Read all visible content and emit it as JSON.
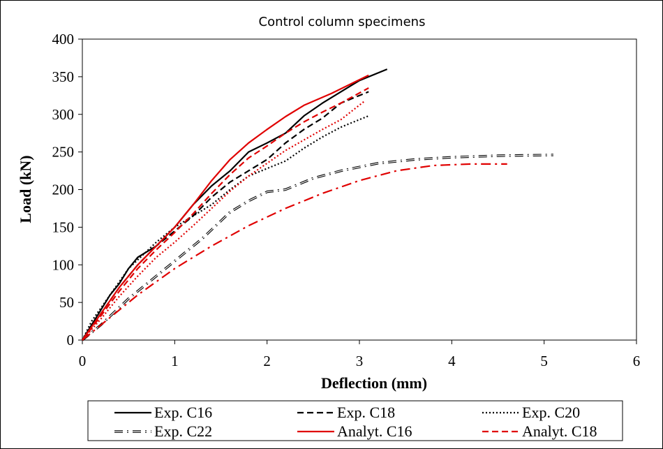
{
  "chart_data": {
    "type": "line",
    "title": "Control column specimens",
    "xlabel": "Deflection  (mm)",
    "ylabel": "Load (kN)",
    "xlim": [
      0,
      6
    ],
    "ylim": [
      0,
      400
    ],
    "xticks": [
      "0",
      "1",
      "2",
      "3",
      "4",
      "5",
      "6"
    ],
    "yticks": [
      "0",
      "50",
      "100",
      "150",
      "200",
      "250",
      "300",
      "350",
      "400"
    ],
    "grid": false,
    "legend_position": "bottom",
    "series": [
      {
        "name": "Exp. C16",
        "color": "#000000",
        "style": "solid",
        "points": [
          [
            0,
            0
          ],
          [
            0.1,
            20
          ],
          [
            0.2,
            40
          ],
          [
            0.3,
            60
          ],
          [
            0.4,
            75
          ],
          [
            0.5,
            95
          ],
          [
            0.6,
            110
          ],
          [
            0.8,
            125
          ],
          [
            1.0,
            150
          ],
          [
            1.2,
            180
          ],
          [
            1.4,
            205
          ],
          [
            1.6,
            225
          ],
          [
            1.8,
            250
          ],
          [
            2.0,
            262
          ],
          [
            2.2,
            275
          ],
          [
            2.4,
            298
          ],
          [
            2.6,
            315
          ],
          [
            2.8,
            330
          ],
          [
            3.0,
            345
          ],
          [
            3.3,
            360
          ]
        ]
      },
      {
        "name": "Exp. C18",
        "color": "#000000",
        "style": "dashed",
        "points": [
          [
            0,
            0
          ],
          [
            0.2,
            35
          ],
          [
            0.4,
            70
          ],
          [
            0.6,
            100
          ],
          [
            0.8,
            125
          ],
          [
            1.0,
            145
          ],
          [
            1.2,
            165
          ],
          [
            1.4,
            190
          ],
          [
            1.6,
            210
          ],
          [
            1.8,
            225
          ],
          [
            2.0,
            240
          ],
          [
            2.2,
            262
          ],
          [
            2.4,
            280
          ],
          [
            2.6,
            295
          ],
          [
            2.8,
            315
          ],
          [
            3.1,
            330
          ]
        ]
      },
      {
        "name": "Exp. C20",
        "color": "#000000",
        "style": "dotted",
        "points": [
          [
            0,
            0
          ],
          [
            0.1,
            25
          ],
          [
            0.3,
            60
          ],
          [
            0.5,
            95
          ],
          [
            0.8,
            130
          ],
          [
            1.0,
            150
          ],
          [
            1.2,
            165
          ],
          [
            1.4,
            180
          ],
          [
            1.6,
            200
          ],
          [
            1.8,
            218
          ],
          [
            2.0,
            228
          ],
          [
            2.2,
            238
          ],
          [
            2.4,
            255
          ],
          [
            2.6,
            270
          ],
          [
            2.8,
            283
          ],
          [
            3.1,
            298
          ]
        ]
      },
      {
        "name": "Exp. C22",
        "color": "#000000",
        "style": "double-dash-dot",
        "points": [
          [
            0,
            0
          ],
          [
            0.2,
            20
          ],
          [
            0.5,
            55
          ],
          [
            0.8,
            85
          ],
          [
            1.0,
            105
          ],
          [
            1.3,
            135
          ],
          [
            1.6,
            170
          ],
          [
            1.8,
            185
          ],
          [
            2.0,
            197
          ],
          [
            2.2,
            200
          ],
          [
            2.5,
            215
          ],
          [
            2.8,
            225
          ],
          [
            3.2,
            235
          ],
          [
            3.6,
            240
          ],
          [
            4.0,
            243
          ],
          [
            4.5,
            245
          ],
          [
            5.1,
            246
          ]
        ]
      },
      {
        "name": "Analyt. C16",
        "color": "#e00000",
        "style": "solid",
        "points": [
          [
            0,
            0
          ],
          [
            0.2,
            35
          ],
          [
            0.4,
            70
          ],
          [
            0.6,
            100
          ],
          [
            0.8,
            125
          ],
          [
            1.0,
            150
          ],
          [
            1.2,
            180
          ],
          [
            1.4,
            212
          ],
          [
            1.6,
            240
          ],
          [
            1.8,
            262
          ],
          [
            2.0,
            280
          ],
          [
            2.2,
            297
          ],
          [
            2.4,
            312
          ],
          [
            2.7,
            328
          ],
          [
            3.1,
            352
          ]
        ]
      },
      {
        "name": "Analyt. C18",
        "color": "#e00000",
        "style": "dashed",
        "points": [
          [
            0,
            0
          ],
          [
            0.2,
            32
          ],
          [
            0.4,
            65
          ],
          [
            0.6,
            95
          ],
          [
            0.8,
            120
          ],
          [
            1.0,
            143
          ],
          [
            1.2,
            168
          ],
          [
            1.4,
            195
          ],
          [
            1.6,
            220
          ],
          [
            1.8,
            242
          ],
          [
            2.0,
            258
          ],
          [
            2.2,
            275
          ],
          [
            2.4,
            290
          ],
          [
            2.6,
            303
          ],
          [
            2.8,
            315
          ],
          [
            3.1,
            335
          ]
        ]
      },
      {
        "color": "#e00000",
        "style": "dotted",
        "points": [
          [
            0,
            0
          ],
          [
            0.2,
            28
          ],
          [
            0.4,
            58
          ],
          [
            0.6,
            85
          ],
          [
            0.8,
            110
          ],
          [
            1.0,
            130
          ],
          [
            1.2,
            152
          ],
          [
            1.4,
            175
          ],
          [
            1.6,
            198
          ],
          [
            1.8,
            218
          ],
          [
            2.0,
            235
          ],
          [
            2.2,
            252
          ],
          [
            2.4,
            266
          ],
          [
            2.6,
            280
          ],
          [
            2.8,
            293
          ],
          [
            3.05,
            317
          ]
        ]
      },
      {
        "color": "#e00000",
        "style": "dash-dot",
        "points": [
          [
            0,
            0
          ],
          [
            0.3,
            30
          ],
          [
            0.6,
            60
          ],
          [
            1.0,
            95
          ],
          [
            1.4,
            125
          ],
          [
            1.8,
            152
          ],
          [
            2.2,
            175
          ],
          [
            2.6,
            195
          ],
          [
            3.0,
            212
          ],
          [
            3.4,
            225
          ],
          [
            3.8,
            232
          ],
          [
            4.2,
            234
          ],
          [
            4.6,
            234
          ]
        ]
      }
    ],
    "legend": [
      {
        "label": "Exp. C16",
        "series": 0
      },
      {
        "label": "Exp. C18",
        "series": 1
      },
      {
        "label": "Exp. C20",
        "series": 2
      },
      {
        "label": "Exp. C22",
        "series": 3
      },
      {
        "label": "Analyt. C16",
        "series": 4
      },
      {
        "label": "Analyt. C18",
        "series": 5
      }
    ]
  }
}
